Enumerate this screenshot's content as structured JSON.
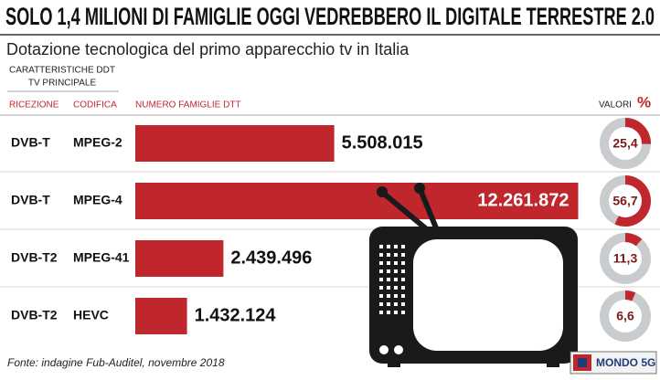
{
  "chart_data": {
    "type": "bar",
    "orientation": "horizontal",
    "title": "SOLO 1,4 MILIONI DI FAMIGLIE OGGI VEDREBBERO IL DIGITALE TERRESTRE 2.0",
    "subtitle": "Dotazione tecnologica del primo apparecchio tv in Italia",
    "group_header": [
      "CARATTERISTICHE DDT",
      "TV PRINCIPALE"
    ],
    "column_headers": {
      "ricezione": "RICEZIONE",
      "codifica": "CODIFICA",
      "values": "NUMERO FAMIGLIE DTT",
      "percent": "VALORI",
      "percent_unit": "%"
    },
    "ricezione": [
      "DVB-T",
      "DVB-T",
      "DVB-T2",
      "DVB-T2"
    ],
    "categories": [
      "MPEG-2",
      "MPEG-4",
      "MPEG-41",
      "HEVC"
    ],
    "values": [
      5508015,
      12261872,
      2439496,
      1432124
    ],
    "value_labels": [
      "5.508.015",
      "12.261.872",
      "2.439.496",
      "1.432.124"
    ],
    "xlim": [
      0,
      12300000
    ],
    "color": "#c0272d",
    "percent": {
      "type": "pie",
      "values": [
        25.4,
        56.7,
        11.3,
        6.6
      ],
      "value_labels": [
        "25,4",
        "56,7",
        "11,3",
        "6,6"
      ],
      "max": 100,
      "color": "#c0272d",
      "track_color": "#c9cccf"
    },
    "source": "Fonte: indagine Fub-Auditel, novembre 2018",
    "brand": "MONDO 5G"
  }
}
